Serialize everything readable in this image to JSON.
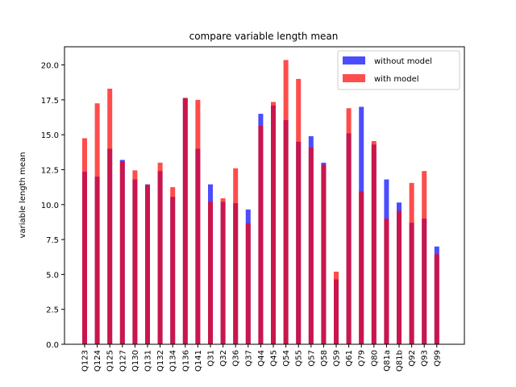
{
  "chart_data": {
    "type": "bar",
    "title": "compare variable length mean",
    "xlabel": "",
    "ylabel": "variable length mean",
    "ylim": [
      0,
      21.3
    ],
    "yticks": [
      0.0,
      2.5,
      5.0,
      7.5,
      10.0,
      12.5,
      15.0,
      17.5,
      20.0
    ],
    "ytick_labels": [
      "0.0",
      "2.5",
      "5.0",
      "7.5",
      "10.0",
      "12.5",
      "15.0",
      "17.5",
      "20.0"
    ],
    "legend_position": "top-right",
    "grid": false,
    "categories": [
      "Q123",
      "Q124",
      "Q125",
      "Q127",
      "Q130",
      "Q131",
      "Q132",
      "Q134",
      "Q136",
      "Q141",
      "Q31",
      "Q32",
      "Q36",
      "Q37",
      "Q44",
      "Q45",
      "Q54",
      "Q55",
      "Q57",
      "Q58",
      "Q59",
      "Q61",
      "Q79",
      "Q80",
      "Q81a",
      "Q81b",
      "Q92",
      "Q93",
      "Q99"
    ],
    "series": [
      {
        "name": "without model",
        "color": "#0000ff",
        "opacity": 0.7,
        "values": [
          12.35,
          12.0,
          14.0,
          13.2,
          11.8,
          11.45,
          12.4,
          10.55,
          17.6,
          14.0,
          11.45,
          10.2,
          10.1,
          9.65,
          16.5,
          17.1,
          16.05,
          14.5,
          14.9,
          13.0,
          4.65,
          15.1,
          17.0,
          14.3,
          11.8,
          10.15,
          8.7,
          9.0,
          7.0
        ]
      },
      {
        "name": "with model",
        "color": "#ff0000",
        "opacity": 0.7,
        "values": [
          14.75,
          17.25,
          18.3,
          13.1,
          12.45,
          11.4,
          13.0,
          11.25,
          17.65,
          17.5,
          10.2,
          10.45,
          12.6,
          8.65,
          15.65,
          17.35,
          20.35,
          19.0,
          14.1,
          12.85,
          5.2,
          16.9,
          10.95,
          14.55,
          9.0,
          9.55,
          11.55,
          12.4,
          6.45
        ]
      }
    ]
  }
}
